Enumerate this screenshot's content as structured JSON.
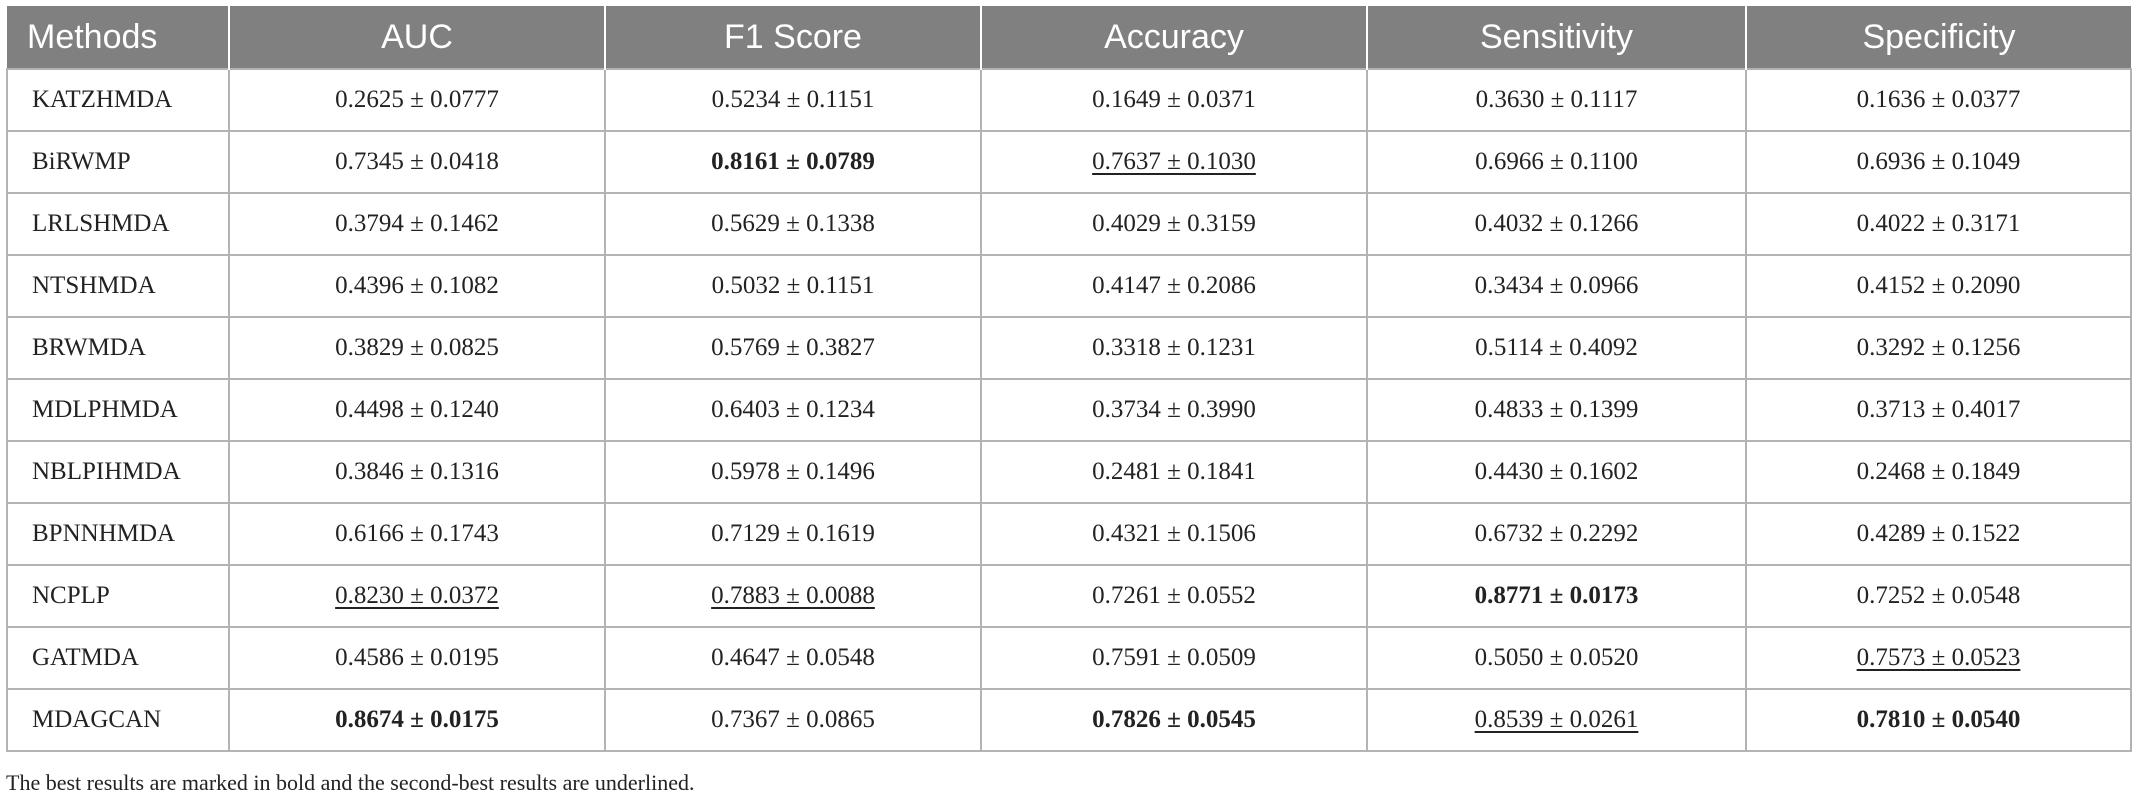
{
  "table": {
    "headers": [
      "Methods",
      "AUC",
      "F1 Score",
      "Accuracy",
      "Sensitivity",
      "Specificity"
    ],
    "rows": [
      {
        "method": "KATZHMDA",
        "cells": [
          {
            "value": "0.2625 ± 0.0777",
            "style": "normal"
          },
          {
            "value": "0.5234 ± 0.1151",
            "style": "normal"
          },
          {
            "value": "0.1649 ± 0.0371",
            "style": "normal"
          },
          {
            "value": "0.3630 ± 0.1117",
            "style": "normal"
          },
          {
            "value": "0.1636 ± 0.0377",
            "style": "normal"
          }
        ]
      },
      {
        "method": "BiRWMP",
        "cells": [
          {
            "value": "0.7345 ± 0.0418",
            "style": "normal"
          },
          {
            "value": "0.8161 ± 0.0789",
            "style": "best"
          },
          {
            "value": "0.7637 ± 0.1030",
            "style": "second"
          },
          {
            "value": "0.6966 ± 0.1100",
            "style": "normal"
          },
          {
            "value": "0.6936 ± 0.1049",
            "style": "normal"
          }
        ]
      },
      {
        "method": "LRLSHMDA",
        "cells": [
          {
            "value": "0.3794 ± 0.1462",
            "style": "normal"
          },
          {
            "value": "0.5629 ± 0.1338",
            "style": "normal"
          },
          {
            "value": "0.4029 ± 0.3159",
            "style": "normal"
          },
          {
            "value": "0.4032 ± 0.1266",
            "style": "normal"
          },
          {
            "value": "0.4022 ± 0.3171",
            "style": "normal"
          }
        ]
      },
      {
        "method": "NTSHMDA",
        "cells": [
          {
            "value": "0.4396 ± 0.1082",
            "style": "normal"
          },
          {
            "value": "0.5032 ± 0.1151",
            "style": "normal"
          },
          {
            "value": "0.4147 ± 0.2086",
            "style": "normal"
          },
          {
            "value": "0.3434 ± 0.0966",
            "style": "normal"
          },
          {
            "value": "0.4152 ± 0.2090",
            "style": "normal"
          }
        ]
      },
      {
        "method": "BRWMDA",
        "cells": [
          {
            "value": "0.3829 ± 0.0825",
            "style": "normal"
          },
          {
            "value": "0.5769 ± 0.3827",
            "style": "normal"
          },
          {
            "value": "0.3318 ± 0.1231",
            "style": "normal"
          },
          {
            "value": "0.5114 ± 0.4092",
            "style": "normal"
          },
          {
            "value": "0.3292 ± 0.1256",
            "style": "normal"
          }
        ]
      },
      {
        "method": "MDLPHMDA",
        "cells": [
          {
            "value": "0.4498 ± 0.1240",
            "style": "normal"
          },
          {
            "value": "0.6403 ± 0.1234",
            "style": "normal"
          },
          {
            "value": "0.3734 ± 0.3990",
            "style": "normal"
          },
          {
            "value": "0.4833 ± 0.1399",
            "style": "normal"
          },
          {
            "value": "0.3713 ± 0.4017",
            "style": "normal"
          }
        ]
      },
      {
        "method": "NBLPIHMDA",
        "cells": [
          {
            "value": "0.3846 ± 0.1316",
            "style": "normal"
          },
          {
            "value": "0.5978 ± 0.1496",
            "style": "normal"
          },
          {
            "value": "0.2481 ± 0.1841",
            "style": "normal"
          },
          {
            "value": "0.4430 ± 0.1602",
            "style": "normal"
          },
          {
            "value": "0.2468 ± 0.1849",
            "style": "normal"
          }
        ]
      },
      {
        "method": "BPNNHMDA",
        "cells": [
          {
            "value": "0.6166 ± 0.1743",
            "style": "normal"
          },
          {
            "value": "0.7129 ± 0.1619",
            "style": "normal"
          },
          {
            "value": "0.4321 ± 0.1506",
            "style": "normal"
          },
          {
            "value": "0.6732 ± 0.2292",
            "style": "normal"
          },
          {
            "value": "0.4289 ± 0.1522",
            "style": "normal"
          }
        ]
      },
      {
        "method": "NCPLP",
        "cells": [
          {
            "value": "0.8230 ± 0.0372",
            "style": "second"
          },
          {
            "value": "0.7883 ± 0.0088",
            "style": "second"
          },
          {
            "value": "0.7261 ± 0.0552",
            "style": "normal"
          },
          {
            "value": "0.8771 ± 0.0173",
            "style": "best"
          },
          {
            "value": "0.7252 ± 0.0548",
            "style": "normal"
          }
        ]
      },
      {
        "method": "GATMDA",
        "cells": [
          {
            "value": "0.4586 ± 0.0195",
            "style": "normal"
          },
          {
            "value": "0.4647 ± 0.0548",
            "style": "normal"
          },
          {
            "value": "0.7591 ± 0.0509",
            "style": "normal"
          },
          {
            "value": "0.5050 ± 0.0520",
            "style": "normal"
          },
          {
            "value": "0.7573 ± 0.0523",
            "style": "second"
          }
        ]
      },
      {
        "method": "MDAGCAN",
        "cells": [
          {
            "value": "0.8674 ± 0.0175",
            "style": "best"
          },
          {
            "value": "0.7367 ± 0.0865",
            "style": "normal"
          },
          {
            "value": "0.7826 ± 0.0545",
            "style": "best"
          },
          {
            "value": "0.8539 ± 0.0261",
            "style": "second"
          },
          {
            "value": "0.7810 ± 0.0540",
            "style": "best"
          }
        ]
      }
    ]
  },
  "footnote": "The best results are marked in bold and the second-best results are underlined.",
  "colors": {
    "header_bg": "#808080",
    "header_text": "#ffffff",
    "grid": "#b3b3b3",
    "text": "#222222"
  }
}
